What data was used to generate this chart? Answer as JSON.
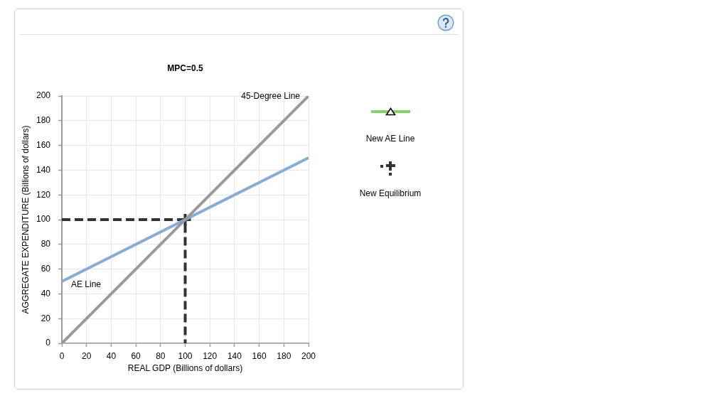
{
  "chart_data": {
    "type": "line",
    "title": "MPC=0.5",
    "xlabel": "REAL GDP (Billions of dollars)",
    "ylabel": "AGGREGATE EXPENDITURE (Billions of dollars)",
    "xlim": [
      0,
      200
    ],
    "xticks": [
      0,
      20,
      40,
      60,
      80,
      100,
      120,
      140,
      160,
      180,
      200
    ],
    "ylim": [
      0,
      200
    ],
    "yticks": [
      0,
      20,
      40,
      60,
      80,
      100,
      120,
      140,
      160,
      180,
      200
    ],
    "grid": true,
    "series": [
      {
        "name": "45-Degree Line",
        "color": "#999999",
        "x": [
          0,
          200
        ],
        "values": [
          0,
          200
        ]
      },
      {
        "name": "AE Line",
        "color": "#86acd9",
        "x": [
          0,
          200
        ],
        "values": [
          50,
          150
        ]
      },
      {
        "type": "line",
        "color": "#333333",
        "x": [
          0,
          100,
          100
        ],
        "values": [
          100,
          100,
          0
        ],
        "line_style": "dashed"
      },
      {
        "type": "scatter",
        "color": "#333333",
        "x": [
          100
        ],
        "values": [
          100
        ],
        "marker": "cross"
      }
    ],
    "annotations": [
      "New AE Line",
      "New Equilibrium"
    ]
  }
}
